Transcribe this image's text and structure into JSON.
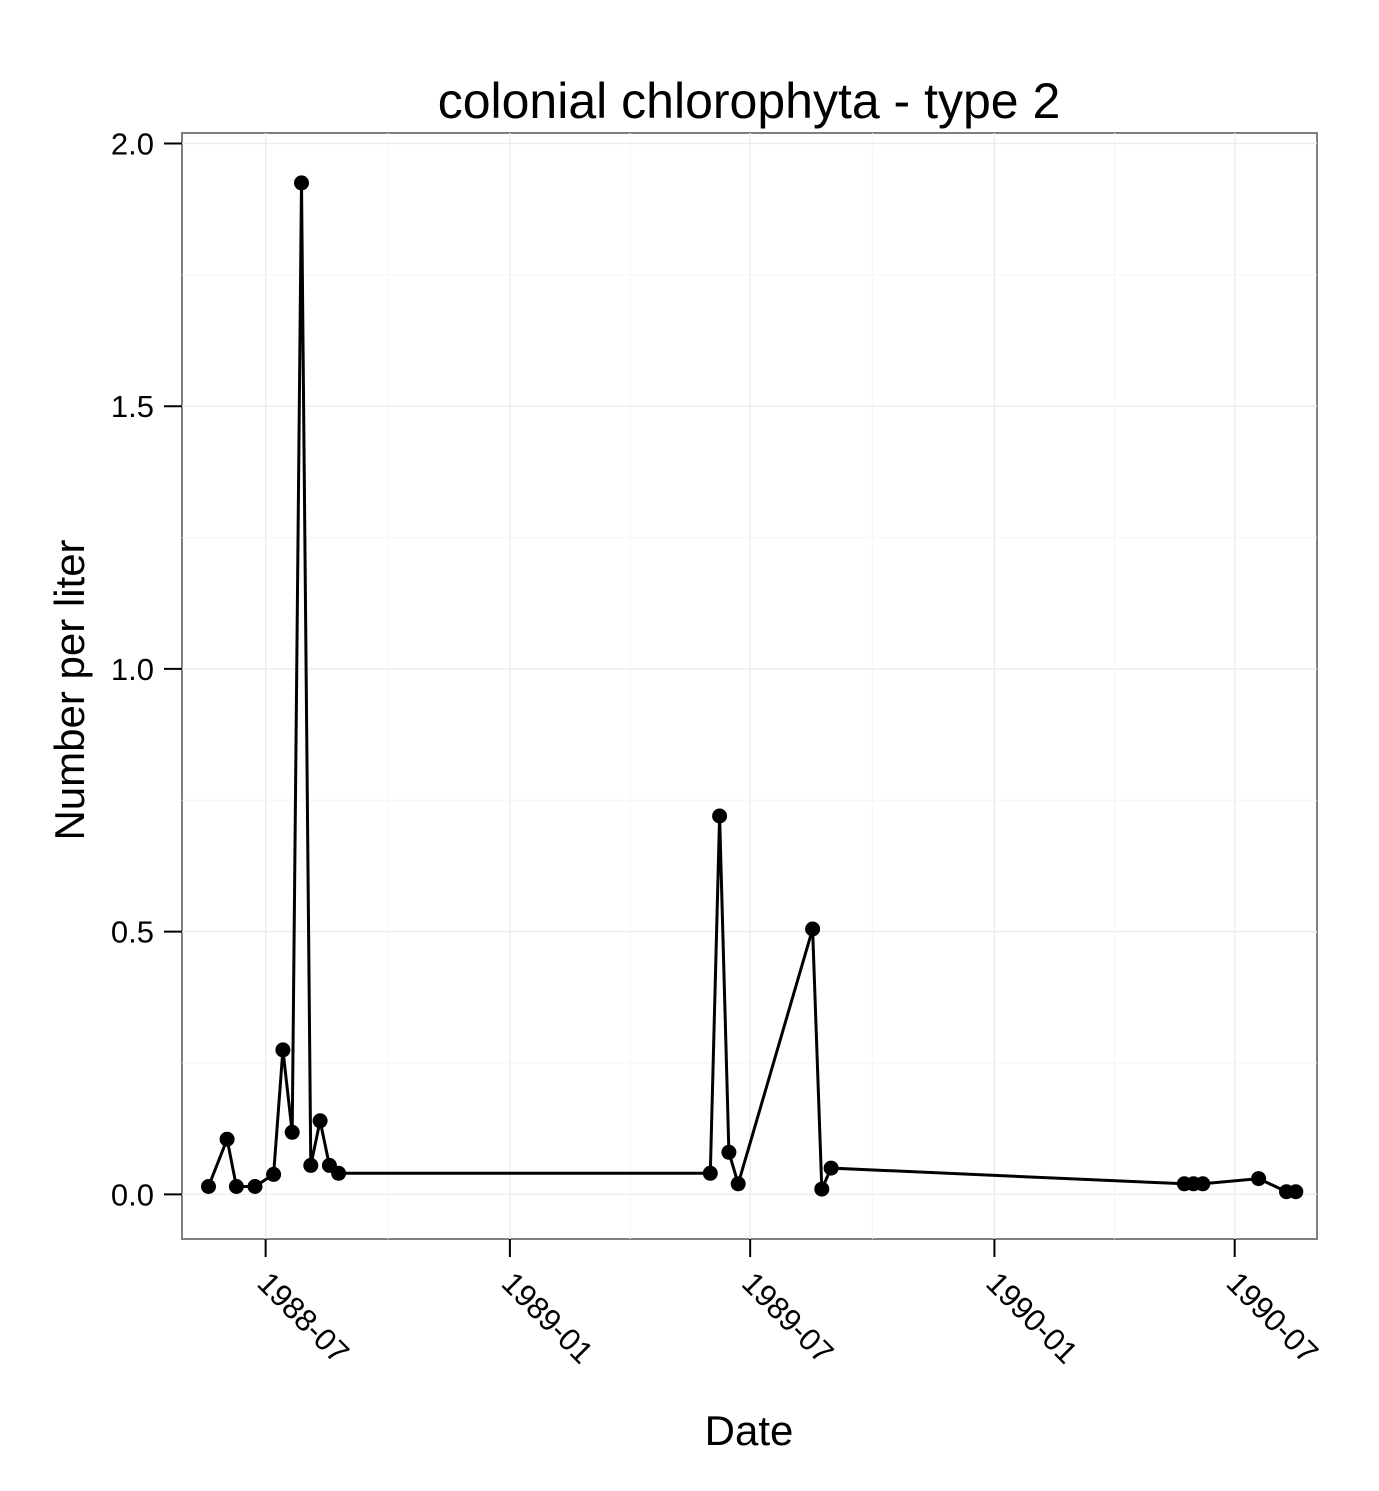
{
  "chart_data": {
    "type": "line",
    "title": "colonial chlorophyta - type 2",
    "xlabel": "Date",
    "ylabel": "Number per liter",
    "x_ticks": [
      "1988-07",
      "1989-01",
      "1989-07",
      "1990-01",
      "1990-07"
    ],
    "y_ticks": [
      "0.0",
      "0.5",
      "1.0",
      "1.5",
      "2.0"
    ],
    "xlim": [
      "1988-04-29",
      "1990-09-01"
    ],
    "ylim": [
      -0.085,
      2.02
    ],
    "grid": true,
    "series": [
      {
        "points": [
          {
            "x": "1988-05-19",
            "y": 0.015
          },
          {
            "x": "1988-06-02",
            "y": 0.105
          },
          {
            "x": "1988-06-09",
            "y": 0.015
          },
          {
            "x": "1988-06-23",
            "y": 0.015
          },
          {
            "x": "1988-07-07",
            "y": 0.038
          },
          {
            "x": "1988-07-14",
            "y": 0.275
          },
          {
            "x": "1988-07-21",
            "y": 0.118
          },
          {
            "x": "1988-07-28",
            "y": 1.925
          },
          {
            "x": "1988-08-04",
            "y": 0.055
          },
          {
            "x": "1988-08-11",
            "y": 0.14
          },
          {
            "x": "1988-08-18",
            "y": 0.055
          },
          {
            "x": "1988-08-25",
            "y": 0.04
          },
          {
            "x": "1989-06-01",
            "y": 0.04
          },
          {
            "x": "1989-06-08",
            "y": 0.72
          },
          {
            "x": "1989-06-15",
            "y": 0.08
          },
          {
            "x": "1989-06-22",
            "y": 0.02
          },
          {
            "x": "1989-08-17",
            "y": 0.505
          },
          {
            "x": "1989-08-24",
            "y": 0.01
          },
          {
            "x": "1989-08-31",
            "y": 0.05
          },
          {
            "x": "1990-05-24",
            "y": 0.02
          },
          {
            "x": "1990-05-31",
            "y": 0.02
          },
          {
            "x": "1990-06-07",
            "y": 0.02
          },
          {
            "x": "1990-07-19",
            "y": 0.03
          },
          {
            "x": "1990-08-09",
            "y": 0.005
          },
          {
            "x": "1990-08-16",
            "y": 0.005
          }
        ]
      }
    ]
  }
}
